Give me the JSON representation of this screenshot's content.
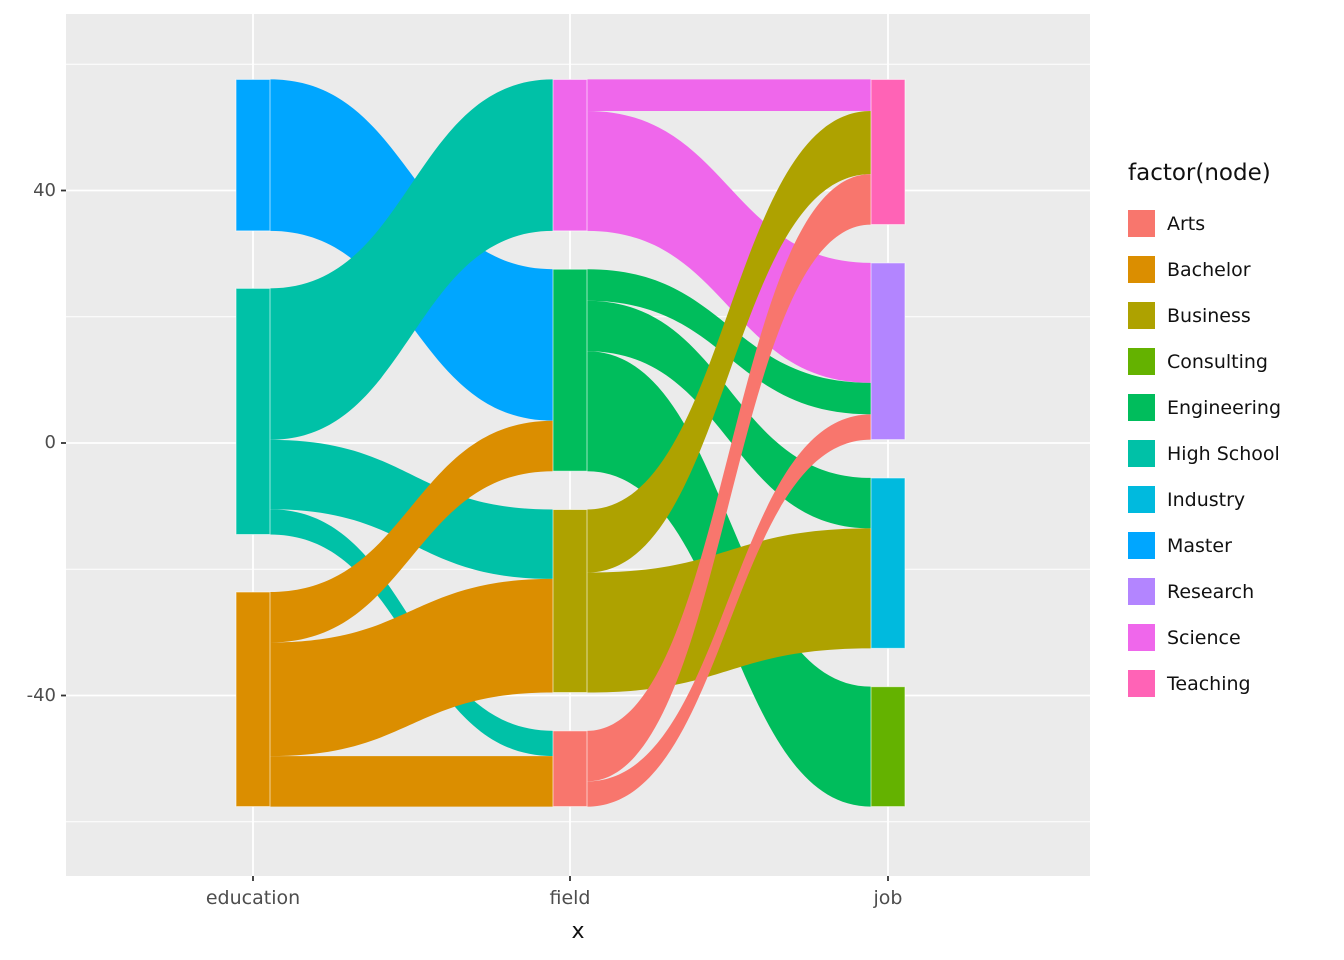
{
  "chart_data": {
    "type": "alluvial",
    "title": "",
    "xlabel": "x",
    "ylabel": "",
    "x_categories": [
      "education",
      "field",
      "job"
    ],
    "y_ticks": [
      40,
      0,
      -40
    ],
    "y_minor_ticks": [
      60,
      20,
      -20,
      -60
    ],
    "ylim": [
      -62,
      62
    ],
    "grid": true,
    "legend_position": "right",
    "legend_title": "factor(node)",
    "legend_items": [
      "Arts",
      "Bachelor",
      "Business",
      "Consulting",
      "Engineering",
      "High School",
      "Industry",
      "Master",
      "Research",
      "Science",
      "Teaching"
    ],
    "node_colors": {
      "Arts": "#F8766D",
      "Bachelor": "#DB8E00",
      "Business": "#AEA200",
      "Consulting": "#64B200",
      "Engineering": "#00BD5C",
      "High School": "#00C1A7",
      "Industry": "#00BADE",
      "Master": "#00A6FF",
      "Research": "#B385FF",
      "Science": "#EF67EB",
      "Teaching": "#FF63B6"
    },
    "axes": [
      {
        "name": "education",
        "strata": [
          "Master",
          "High School",
          "Bachelor"
        ]
      },
      {
        "name": "field",
        "strata": [
          "Science",
          "Engineering",
          "Business",
          "Arts"
        ]
      },
      {
        "name": "job",
        "strata": [
          "Teaching",
          "Research",
          "Industry",
          "Consulting"
        ]
      }
    ],
    "links": [
      {
        "from": "Master",
        "to": "Engineering",
        "value": 24
      },
      {
        "from": "High School",
        "to": "Science",
        "value": 24
      },
      {
        "from": "High School",
        "to": "Business",
        "value": 11
      },
      {
        "from": "High School",
        "to": "Arts",
        "value": 4
      },
      {
        "from": "Bachelor",
        "to": "Engineering",
        "value": 8
      },
      {
        "from": "Bachelor",
        "to": "Business",
        "value": 18
      },
      {
        "from": "Bachelor",
        "to": "Arts",
        "value": 8
      },
      {
        "from": "Science",
        "to": "Teaching",
        "value": 5
      },
      {
        "from": "Science",
        "to": "Research",
        "value": 19
      },
      {
        "from": "Engineering",
        "to": "Research",
        "value": 5
      },
      {
        "from": "Engineering",
        "to": "Industry",
        "value": 8
      },
      {
        "from": "Engineering",
        "to": "Consulting",
        "value": 19
      },
      {
        "from": "Business",
        "to": "Teaching",
        "value": 10
      },
      {
        "from": "Business",
        "to": "Industry",
        "value": 19
      },
      {
        "from": "Arts",
        "to": "Teaching",
        "value": 8
      },
      {
        "from": "Arts",
        "to": "Research",
        "value": 4
      }
    ],
    "colors": {
      "panel_background": "#EBEBEB",
      "gridline": "#FFFFFF",
      "tick_text": "#4D4D4D",
      "axis_title_text": "#111111",
      "tick_mark": "#333333"
    }
  }
}
